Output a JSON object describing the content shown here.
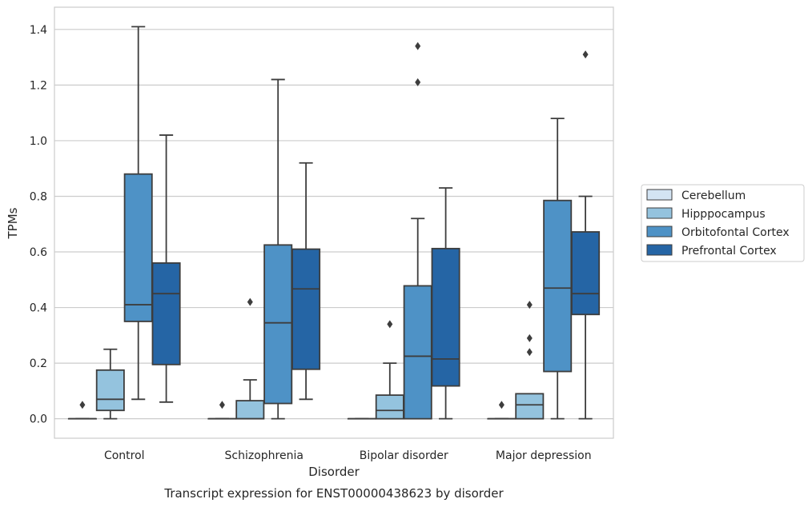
{
  "chart_data": {
    "type": "box",
    "caption": "Transcript expression for ENST00000438623 by disorder",
    "xlabel": "Disorder",
    "ylabel": "TPMs",
    "ylim": [
      -0.07,
      1.48
    ],
    "yticks": [
      "0.0",
      "0.2",
      "0.4",
      "0.6",
      "0.8",
      "1.0",
      "1.2",
      "1.4"
    ],
    "ytick_values": [
      0,
      0.2,
      0.4,
      0.6,
      0.8,
      1.0,
      1.2,
      1.4
    ],
    "grid": true,
    "legend_position": "outside right",
    "categories": [
      "Control",
      "Schizophrenia",
      "Bipolar disorder",
      "Major depression"
    ],
    "series": [
      {
        "name": "Cerebellum",
        "color": "#d3e4f3",
        "boxes": [
          {
            "q1": 0,
            "median": 0,
            "q3": 0,
            "whisker_low": 0,
            "whisker_high": 0,
            "outliers": [
              0.05
            ]
          },
          {
            "q1": 0,
            "median": 0,
            "q3": 0,
            "whisker_low": 0,
            "whisker_high": 0,
            "outliers": [
              0.05
            ]
          },
          {
            "q1": 0,
            "median": 0,
            "q3": 0,
            "whisker_low": 0,
            "whisker_high": 0,
            "outliers": []
          },
          {
            "q1": 0,
            "median": 0,
            "q3": 0,
            "whisker_low": 0,
            "whisker_high": 0,
            "outliers": [
              0.05
            ]
          }
        ]
      },
      {
        "name": "Hipppocampus",
        "color": "#94c3de",
        "boxes": [
          {
            "q1": 0.03,
            "median": 0.07,
            "q3": 0.175,
            "whisker_low": 0,
            "whisker_high": 0.25,
            "outliers": []
          },
          {
            "q1": 0,
            "median": 0,
            "q3": 0.065,
            "whisker_low": 0,
            "whisker_high": 0.14,
            "outliers": [
              0.42
            ]
          },
          {
            "q1": 0,
            "median": 0.03,
            "q3": 0.085,
            "whisker_low": 0,
            "whisker_high": 0.2,
            "outliers": [
              0.34
            ]
          },
          {
            "q1": 0,
            "median": 0.05,
            "q3": 0.09,
            "whisker_low": 0,
            "whisker_high": 0.09,
            "outliers": [
              0.24,
              0.29,
              0.41
            ]
          }
        ]
      },
      {
        "name": "Orbitofontal Cortex",
        "color": "#4e92c6",
        "boxes": [
          {
            "q1": 0.35,
            "median": 0.41,
            "q3": 0.88,
            "whisker_low": 0.07,
            "whisker_high": 1.41,
            "outliers": []
          },
          {
            "q1": 0.055,
            "median": 0.345,
            "q3": 0.625,
            "whisker_low": 0,
            "whisker_high": 1.22,
            "outliers": []
          },
          {
            "q1": 0,
            "median": 0.225,
            "q3": 0.478,
            "whisker_low": 0,
            "whisker_high": 0.72,
            "outliers": [
              1.21,
              1.34
            ]
          },
          {
            "q1": 0.17,
            "median": 0.47,
            "q3": 0.785,
            "whisker_low": 0,
            "whisker_high": 1.08,
            "outliers": []
          }
        ]
      },
      {
        "name": "Prefrontal Cortex",
        "color": "#2565a5",
        "boxes": [
          {
            "q1": 0.195,
            "median": 0.45,
            "q3": 0.56,
            "whisker_low": 0.06,
            "whisker_high": 1.02,
            "outliers": []
          },
          {
            "q1": 0.178,
            "median": 0.467,
            "q3": 0.61,
            "whisker_low": 0.07,
            "whisker_high": 0.92,
            "outliers": []
          },
          {
            "q1": 0.118,
            "median": 0.215,
            "q3": 0.612,
            "whisker_low": 0,
            "whisker_high": 0.83,
            "outliers": []
          },
          {
            "q1": 0.375,
            "median": 0.45,
            "q3": 0.672,
            "whisker_low": 0,
            "whisker_high": 0.8,
            "outliers": [
              1.31
            ]
          }
        ]
      }
    ]
  }
}
